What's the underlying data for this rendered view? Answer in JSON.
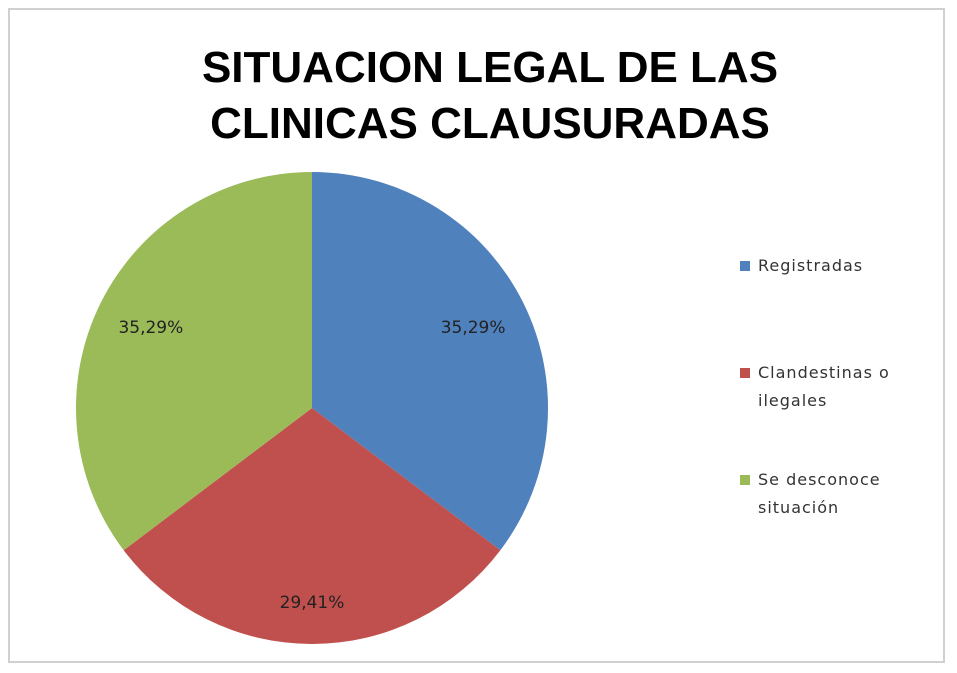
{
  "chart_data": {
    "type": "pie",
    "title": "SITUACION LEGAL DE LAS CLINICAS CLAUSURADAS",
    "categories": [
      "Registradas",
      "Clandestinas o ilegales",
      "Se desconoce situación"
    ],
    "values": [
      35.29,
      29.41,
      35.29
    ],
    "value_labels": [
      "35,29%",
      "29,41%",
      "35,29%"
    ],
    "colors": [
      "#4f81bd",
      "#c0504d",
      "#9bbb59"
    ],
    "legend": "right"
  }
}
